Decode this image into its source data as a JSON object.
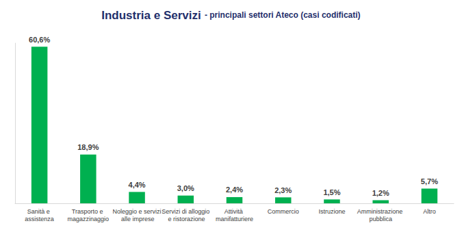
{
  "chart_data": {
    "type": "bar",
    "title": "Industria e Servizi",
    "subtitle": "- principali settori Ateco (casi codificati)",
    "categories": [
      "Sanità e assistenza",
      "Trasporto e magazzinaggio",
      "Noleggio e servizi alle imprese",
      "Servizi di alloggio e ristorazione",
      "Attività manifatturiere",
      "Commercio",
      "Istruzione",
      "Amministrazione pubblica",
      "Altro"
    ],
    "values": [
      60.6,
      18.9,
      4.4,
      3.0,
      2.4,
      2.3,
      1.5,
      1.2,
      5.7
    ],
    "value_labels": [
      "60,6%",
      "18,9%",
      "4,4%",
      "3,0%",
      "2,4%",
      "2,3%",
      "1,5%",
      "1,2%",
      "5,7%"
    ],
    "color": "#00b050",
    "ylim": [
      0,
      62
    ],
    "yticks": [],
    "grid": false,
    "data_labels": true,
    "tick_labels": "x"
  }
}
